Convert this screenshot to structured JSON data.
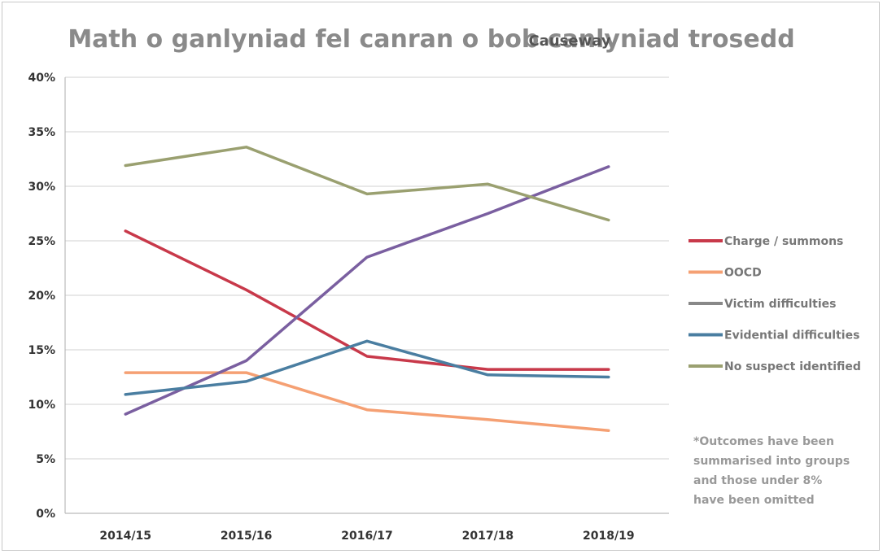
{
  "chart_data": {
    "type": "line",
    "title": "Math o ganlyniad fel canran o bob canlyniad trosedd",
    "title_overlap": "Causeway",
    "categories": [
      "2014/15",
      "2015/16",
      "2016/17",
      "2017/18",
      "2018/19"
    ],
    "ylim": [
      0,
      40
    ],
    "y_ticks": [
      "0%",
      "5%",
      "10%",
      "15%",
      "20%",
      "25%",
      "30%",
      "35%",
      "40%"
    ],
    "grid": true,
    "legend_position": "right",
    "series": [
      {
        "name": "Charge / summons",
        "color": "#c8394a",
        "values": [
          25.9,
          20.5,
          14.4,
          13.2,
          13.2
        ]
      },
      {
        "name": "OOCD",
        "color": "#f5a073",
        "values": [
          12.9,
          12.9,
          9.5,
          8.6,
          7.6
        ]
      },
      {
        "name": "Victim difficulties",
        "color": "#7a5fa0",
        "values": [
          9.1,
          14.0,
          23.5,
          27.5,
          31.8
        ]
      },
      {
        "name": "Evidential difficulties",
        "color": "#4a7ea1",
        "values": [
          10.9,
          12.1,
          15.8,
          12.7,
          12.5
        ]
      },
      {
        "name": "No suspect identified",
        "color": "#9aa070",
        "values": [
          31.9,
          33.6,
          29.3,
          30.2,
          26.9
        ]
      }
    ],
    "legend_marker_colors": [
      "#c8394a",
      "#f5a073",
      "#888888",
      "#4a7ea1",
      "#9aa070"
    ],
    "annotation": [
      "*Outcomes have been",
      "summarised into groups",
      "and those under 8%",
      "have been omitted"
    ]
  }
}
